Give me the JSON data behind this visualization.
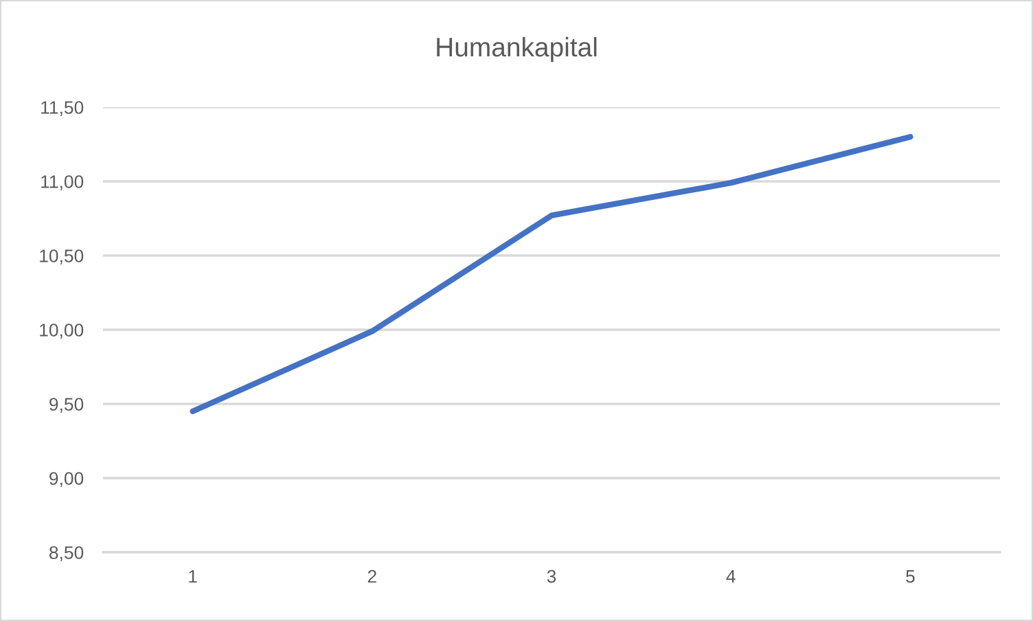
{
  "chart_data": {
    "type": "line",
    "title": "Humankapital",
    "categories": [
      "1",
      "2",
      "3",
      "4",
      "5"
    ],
    "series": [
      {
        "color": "#4472c4",
        "values": [
          9.45,
          9.99,
          10.77,
          10.99,
          11.3
        ]
      }
    ],
    "ylim": [
      8.5,
      11.5
    ],
    "yticks": [
      {
        "value": 8.5,
        "label": "8,50"
      },
      {
        "value": 9.0,
        "label": "9,00"
      },
      {
        "value": 9.5,
        "label": "9,50"
      },
      {
        "value": 10.0,
        "label": "10,00"
      },
      {
        "value": 10.5,
        "label": "10,50"
      },
      {
        "value": 11.0,
        "label": "11,00"
      },
      {
        "value": 11.5,
        "label": "11,50"
      }
    ],
    "grid": "y",
    "line_style": "solid"
  }
}
